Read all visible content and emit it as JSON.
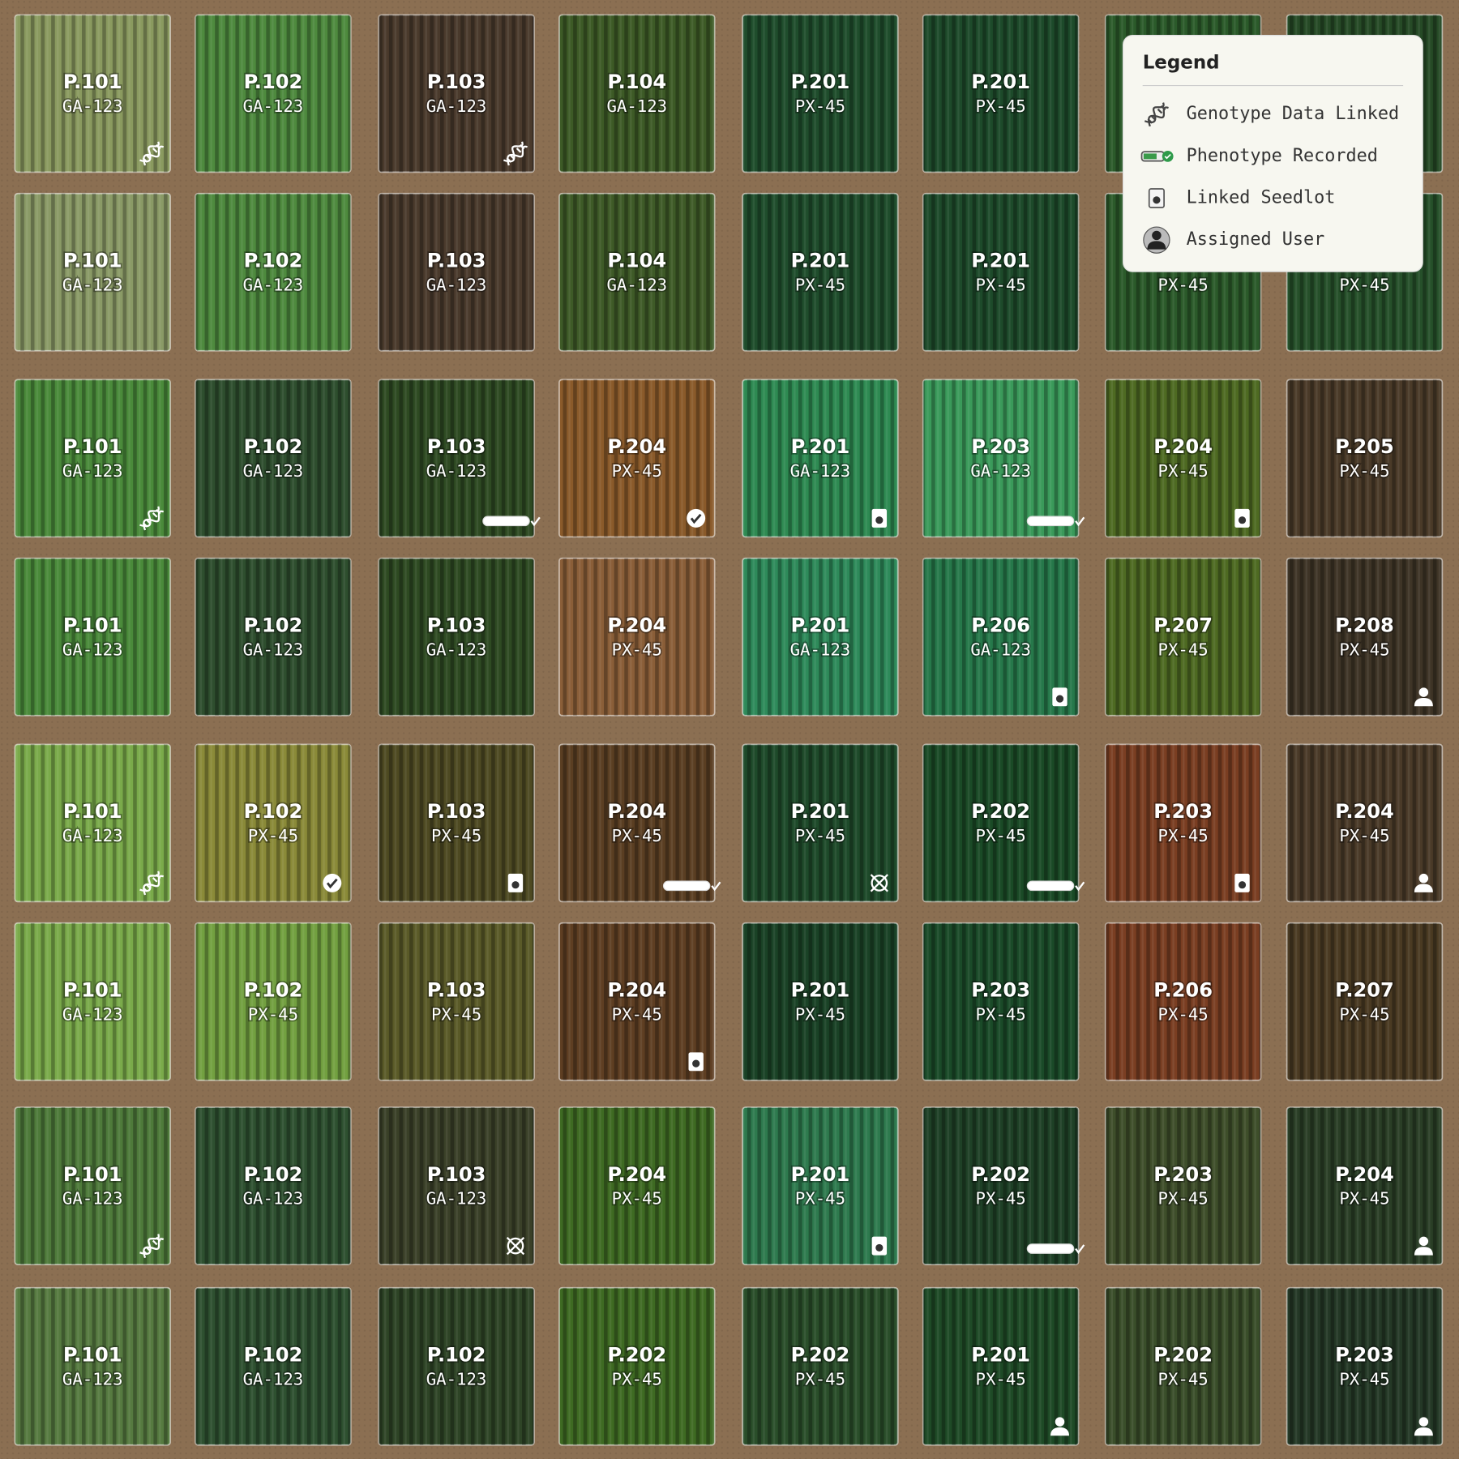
{
  "legend": {
    "title": "Legend",
    "items": [
      {
        "label": "Genotype Data Linked",
        "icon": "genotype"
      },
      {
        "label": "Phenotype Recorded",
        "icon": "phenotype"
      },
      {
        "label": "Linked Seedlot",
        "icon": "seedlot"
      },
      {
        "label": "Assigned User",
        "icon": "user"
      }
    ]
  },
  "plots": [
    [
      {
        "label": "P.101",
        "code": "GA-123",
        "color": "#8a9a5f",
        "icon": "genotype"
      },
      {
        "label": "P.102",
        "code": "GA-123",
        "color": "#4e8a3e"
      },
      {
        "label": "P.103",
        "code": "GA-123",
        "color": "#4a3a2c",
        "icon": "genotype"
      },
      {
        "label": "P.104",
        "code": "GA-123",
        "color": "#3d5a26"
      },
      {
        "label": "P.201",
        "code": "PX-45",
        "color": "#1f4d2c"
      },
      {
        "label": "P.201",
        "code": "PX-45",
        "color": "#1d4a2a"
      },
      {
        "color": "#2b5a2a"
      },
      {
        "color": "#264a26"
      }
    ],
    [
      {
        "label": "P.101",
        "code": "GA-123",
        "color": "#8a9a66"
      },
      {
        "label": "P.102",
        "code": "GA-123",
        "color": "#4e8a3e"
      },
      {
        "label": "P.103",
        "code": "GA-123",
        "color": "#4a3a2c"
      },
      {
        "label": "P.104",
        "code": "GA-123",
        "color": "#3e5a27"
      },
      {
        "label": "P.201",
        "code": "PX-45",
        "color": "#1f4d2c"
      },
      {
        "label": "P.201",
        "code": "PX-45",
        "color": "#1d4a2a"
      },
      {
        "code": "PX-45",
        "color": "#2b5a2a"
      },
      {
        "code": "PX-45",
        "color": "#26502a"
      }
    ],
    [
      {
        "label": "P.101",
        "code": "GA-123",
        "color": "#4a8a3a",
        "icon": "genotype"
      },
      {
        "label": "P.102",
        "code": "GA-123",
        "color": "#2e4e2e"
      },
      {
        "label": "P.103",
        "code": "GA-123",
        "color": "#2e4a22",
        "icon": "phenotype"
      },
      {
        "label": "P.204",
        "code": "PX-45",
        "color": "#8a5a2a",
        "icon": "check"
      },
      {
        "label": "P.201",
        "code": "GA-123",
        "color": "#2e8a52",
        "icon": "seedlot"
      },
      {
        "label": "P.203",
        "code": "GA-123",
        "color": "#3a9a5a",
        "icon": "phenotype"
      },
      {
        "label": "P.204",
        "code": "PX-45",
        "color": "#4e6a22",
        "icon": "seedlot"
      },
      {
        "label": "P.205",
        "code": "PX-45",
        "color": "#4a3a28"
      }
    ],
    [
      {
        "label": "P.101",
        "code": "GA-123",
        "color": "#4a8a3a"
      },
      {
        "label": "P.102",
        "code": "GA-123",
        "color": "#2e4e2e"
      },
      {
        "label": "P.103",
        "code": "GA-123",
        "color": "#2e4a22"
      },
      {
        "label": "P.204",
        "code": "PX-45",
        "color": "#8a5e38"
      },
      {
        "label": "P.201",
        "code": "GA-123",
        "color": "#2e8a5a"
      },
      {
        "label": "P.206",
        "code": "GA-123",
        "color": "#26784a",
        "icon": "seedlot"
      },
      {
        "label": "P.207",
        "code": "PX-45",
        "color": "#4e6a22"
      },
      {
        "label": "P.208",
        "code": "PX-45",
        "color": "#3e3426",
        "icon": "user"
      }
    ],
    [
      {
        "label": "P.101",
        "code": "GA-123",
        "color": "#7aaa4a",
        "icon": "genotype"
      },
      {
        "label": "P.102",
        "code": "PX-45",
        "color": "#8a8a38",
        "icon": "check"
      },
      {
        "label": "P.103",
        "code": "PX-45",
        "color": "#4e4a22",
        "icon": "seedlot"
      },
      {
        "label": "P.204",
        "code": "PX-45",
        "color": "#5a3e22",
        "icon": "phenotype"
      },
      {
        "label": "P.201",
        "code": "PX-45",
        "color": "#1e4a2a",
        "icon": "other"
      },
      {
        "label": "P.202",
        "code": "PX-45",
        "color": "#1a4a26",
        "icon": "phenotype"
      },
      {
        "label": "P.203",
        "code": "PX-45",
        "color": "#7a3e22",
        "icon": "seedlot"
      },
      {
        "label": "P.204",
        "code": "PX-45",
        "color": "#4a3a28",
        "icon": "user"
      }
    ],
    [
      {
        "label": "P.101",
        "code": "GA-123",
        "color": "#7aaa4a"
      },
      {
        "label": "P.102",
        "code": "PX-45",
        "color": "#72a040"
      },
      {
        "label": "P.103",
        "code": "PX-45",
        "color": "#5a5a28"
      },
      {
        "label": "P.204",
        "code": "PX-45",
        "color": "#5e3e22",
        "icon": "seedlot"
      },
      {
        "label": "P.201",
        "code": "PX-45",
        "color": "#1a4226"
      },
      {
        "label": "P.203",
        "code": "PX-45",
        "color": "#1a4a28"
      },
      {
        "label": "P.206",
        "code": "PX-45",
        "color": "#7a3e22"
      },
      {
        "label": "P.207",
        "code": "PX-45",
        "color": "#4a3a22"
      }
    ],
    [
      {
        "label": "P.101",
        "code": "GA-123",
        "color": "#4e7a3a",
        "icon": "genotype"
      },
      {
        "label": "P.102",
        "code": "GA-123",
        "color": "#2e5030"
      },
      {
        "label": "P.103",
        "code": "GA-123",
        "color": "#3a4028",
        "icon": "other"
      },
      {
        "label": "P.204",
        "code": "PX-45",
        "color": "#3e6a22"
      },
      {
        "label": "P.201",
        "code": "PX-45",
        "color": "#2e7a4e",
        "icon": "seedlot"
      },
      {
        "label": "P.202",
        "code": "PX-45",
        "color": "#1e4026",
        "icon": "phenotype"
      },
      {
        "label": "P.203",
        "code": "PX-45",
        "color": "#3e4e2a"
      },
      {
        "label": "P.204",
        "code": "PX-45",
        "color": "#2a3e26",
        "icon": "user"
      }
    ],
    [
      {
        "label": "P.101",
        "code": "GA-123",
        "color": "#567a40"
      },
      {
        "label": "P.102",
        "code": "GA-123",
        "color": "#2e5030"
      },
      {
        "label": "P.102",
        "code": "GA-123",
        "color": "#2e4426"
      },
      {
        "label": "P.202",
        "code": "PX-45",
        "color": "#3e6a22"
      },
      {
        "label": "P.202",
        "code": "PX-45",
        "color": "#2a4e2a"
      },
      {
        "label": "P.201",
        "code": "PX-45",
        "color": "#1e4a26",
        "icon": "user"
      },
      {
        "label": "P.202",
        "code": "PX-45",
        "color": "#3a4e2a"
      },
      {
        "label": "P.203",
        "code": "PX-45",
        "color": "#243826",
        "icon": "user"
      }
    ]
  ]
}
